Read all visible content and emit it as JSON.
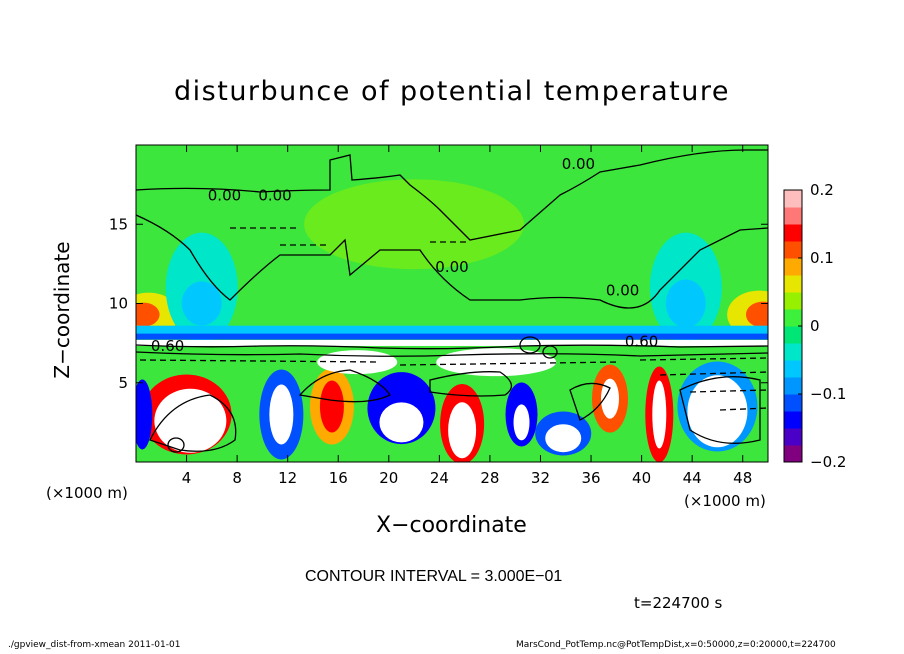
{
  "page": {
    "title": "disturbunce of potential temperature",
    "xlabel": "X−coordinate",
    "ylabel": "Z−coordinate",
    "x_unit_left": "(×1000 m)",
    "x_unit_right": "(×1000 m)",
    "contour_interval": "CONTOUR INTERVAL = 3.000E−01",
    "time": "t=224700 s",
    "footer_left": "./gpview_dist-from-xmean  2011-01-01",
    "footer_right": "MarsCond_PotTemp.nc@PotTempDist,x=0:50000,z=0:20000,t=224700"
  },
  "chart_data": {
    "type": "heatmap",
    "title": "disturbunce of potential temperature",
    "xlabel": "X−coordinate",
    "ylabel": "Z−coordinate",
    "x_unit": "(×1000 m)",
    "xlim": [
      0,
      50
    ],
    "ylim": [
      0,
      20
    ],
    "x_ticks": [
      4,
      8,
      12,
      16,
      20,
      24,
      28,
      32,
      36,
      40,
      44,
      48
    ],
    "y_ticks": [
      5,
      10,
      15
    ],
    "colorbar": {
      "range": [
        -0.2,
        0.2
      ],
      "tick_values": [
        0.2,
        0.1,
        0,
        -0.1,
        -0.2
      ],
      "tick_labels": [
        "0.2",
        "0.1",
        "0",
        "−0.1",
        "−0.2"
      ],
      "colors": [
        "#800080",
        "#4b00c8",
        "#0000ff",
        "#0050ff",
        "#0096ff",
        "#00c8ff",
        "#00e6c8",
        "#00e676",
        "#3cf03c",
        "#96f000",
        "#e6e600",
        "#ffaa00",
        "#ff5000",
        "#ff0000",
        "#ff7878",
        "#ffbebe"
      ]
    },
    "contour_interval": "3.000E−01",
    "contour_labels": [
      {
        "x": 7,
        "z": 16.5,
        "text": "0.00"
      },
      {
        "x": 11,
        "z": 16.5,
        "text": "0.00"
      },
      {
        "x": 35,
        "z": 18.5,
        "text": "0.00"
      },
      {
        "x": 25,
        "z": 12,
        "text": "0.00"
      },
      {
        "x": 38.5,
        "z": 10.5,
        "text": "0.00"
      },
      {
        "x": 2.5,
        "z": 7,
        "text": "0.60"
      },
      {
        "x": 40,
        "z": 7.3,
        "text": "0.60"
      }
    ],
    "time": "t=224700 s"
  }
}
